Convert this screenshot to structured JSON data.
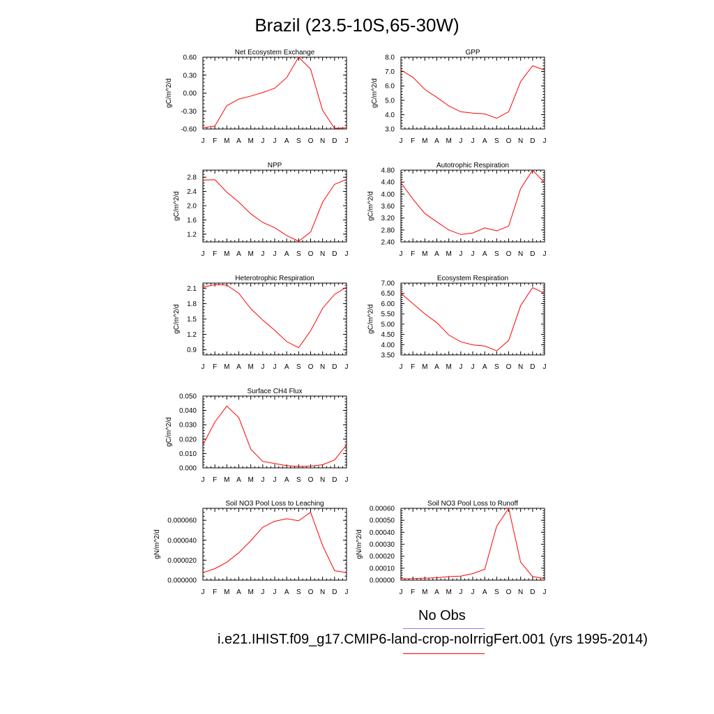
{
  "figure_title": "Brazil (23.5-10S,65-30W)",
  "legend": {
    "obs_label": "No Obs",
    "obs_color": "#8080ff",
    "run_label": "i.e21.IHIST.f09_g17.CMIP6-land-crop-noIrrigFert.001 (yrs 1995-2014)",
    "run_color": "#ff0000"
  },
  "chart_data": [
    {
      "type": "line",
      "title": "Net Ecosystem Exchange",
      "ylabel": "gC/m^2/d",
      "xlabel": "",
      "categories": [
        "J",
        "F",
        "M",
        "A",
        "M",
        "J",
        "J",
        "A",
        "S",
        "O",
        "N",
        "D",
        "J"
      ],
      "ylim": [
        -0.6,
        0.6
      ],
      "yticks": [
        -0.6,
        -0.3,
        0.0,
        0.3,
        0.6
      ],
      "ytick_labels": [
        "-0.60",
        "-0.30",
        "0.00",
        "0.30",
        "0.60"
      ],
      "series": [
        {
          "color": "#ff0000",
          "values": [
            -0.58,
            -0.55,
            -0.21,
            -0.1,
            -0.05,
            0.01,
            0.08,
            0.26,
            0.6,
            0.4,
            -0.29,
            -0.59,
            -0.58
          ]
        }
      ]
    },
    {
      "type": "line",
      "title": "GPP",
      "ylabel": "gC/m^2/d",
      "xlabel": "",
      "categories": [
        "J",
        "F",
        "M",
        "A",
        "M",
        "J",
        "J",
        "A",
        "S",
        "O",
        "N",
        "D",
        "J"
      ],
      "ylim": [
        3.0,
        8.0
      ],
      "yticks": [
        3,
        4,
        5,
        6,
        7,
        8
      ],
      "ytick_labels": [
        "3.0",
        "4.0",
        "5.0",
        "6.0",
        "7.0",
        "8.0"
      ],
      "series": [
        {
          "color": "#ff0000",
          "values": [
            7.1,
            6.6,
            5.75,
            5.2,
            4.6,
            4.2,
            4.1,
            4.05,
            3.75,
            4.2,
            6.3,
            7.4,
            7.1
          ]
        }
      ]
    },
    {
      "type": "line",
      "title": "NPP",
      "ylabel": "gC/m^2/d",
      "xlabel": "",
      "categories": [
        "J",
        "F",
        "M",
        "A",
        "M",
        "J",
        "J",
        "A",
        "S",
        "O",
        "N",
        "D",
        "J"
      ],
      "ylim": [
        0.98,
        3.0
      ],
      "yticks": [
        1.2,
        1.6,
        2.0,
        2.4,
        2.8
      ],
      "ytick_labels": [
        "1.2",
        "1.6",
        "2.0",
        "2.4",
        "2.8"
      ],
      "series": [
        {
          "color": "#ff0000",
          "values": [
            2.72,
            2.73,
            2.38,
            2.1,
            1.77,
            1.53,
            1.38,
            1.16,
            1.0,
            1.26,
            2.1,
            2.6,
            2.74
          ]
        }
      ]
    },
    {
      "type": "line",
      "title": "Autotrophic Respiration",
      "ylabel": "gC/m^2/d",
      "xlabel": "",
      "categories": [
        "J",
        "F",
        "M",
        "A",
        "M",
        "J",
        "J",
        "A",
        "S",
        "O",
        "N",
        "D",
        "J"
      ],
      "ylim": [
        2.4,
        4.8
      ],
      "yticks": [
        2.4,
        2.8,
        3.2,
        3.6,
        4.0,
        4.4,
        4.8
      ],
      "ytick_labels": [
        "2.40",
        "2.80",
        "3.20",
        "3.60",
        "4.00",
        "4.40",
        "4.80"
      ],
      "series": [
        {
          "color": "#ff0000",
          "values": [
            4.38,
            3.83,
            3.35,
            3.07,
            2.8,
            2.65,
            2.7,
            2.87,
            2.77,
            2.93,
            4.18,
            4.8,
            4.38
          ]
        }
      ]
    },
    {
      "type": "line",
      "title": "Heterotrophic Respiration",
      "ylabel": "gC/m^2/d",
      "xlabel": "",
      "categories": [
        "J",
        "F",
        "M",
        "A",
        "M",
        "J",
        "J",
        "A",
        "S",
        "O",
        "N",
        "D",
        "J"
      ],
      "ylim": [
        0.8,
        2.2
      ],
      "yticks": [
        0.9,
        1.2,
        1.5,
        1.8,
        2.1
      ],
      "ytick_labels": [
        "0.9",
        "1.2",
        "1.5",
        "1.8",
        "2.1"
      ],
      "series": [
        {
          "color": "#ff0000",
          "values": [
            2.12,
            2.17,
            2.16,
            2.0,
            1.7,
            1.48,
            1.28,
            1.06,
            0.94,
            1.27,
            1.71,
            1.98,
            2.12
          ]
        }
      ]
    },
    {
      "type": "line",
      "title": "Ecosystem Respiration",
      "ylabel": "gC/m^2/d",
      "xlabel": "",
      "categories": [
        "J",
        "F",
        "M",
        "A",
        "M",
        "J",
        "J",
        "A",
        "S",
        "O",
        "N",
        "D",
        "J"
      ],
      "ylim": [
        3.5,
        7.0
      ],
      "yticks": [
        3.5,
        4.0,
        4.5,
        5.0,
        5.5,
        6.0,
        6.5,
        7.0
      ],
      "ytick_labels": [
        "3.50",
        "4.00",
        "4.50",
        "5.00",
        "5.50",
        "6.00",
        "6.50",
        "7.00"
      ],
      "series": [
        {
          "color": "#ff0000",
          "values": [
            6.5,
            6.0,
            5.5,
            5.07,
            4.47,
            4.14,
            3.99,
            3.93,
            3.7,
            4.2,
            5.9,
            6.78,
            6.5
          ]
        }
      ]
    },
    {
      "type": "line",
      "title": "Surface CH4 Flux",
      "ylabel": "gC/m^2/d",
      "xlabel": "",
      "categories": [
        "J",
        "F",
        "M",
        "A",
        "M",
        "J",
        "J",
        "A",
        "S",
        "O",
        "N",
        "D",
        "J"
      ],
      "ylim": [
        0.0,
        0.05
      ],
      "yticks": [
        0,
        0.01,
        0.02,
        0.03,
        0.04,
        0.05
      ],
      "ytick_labels": [
        "0.000",
        "0.010",
        "0.020",
        "0.030",
        "0.040",
        "0.050"
      ],
      "series": [
        {
          "color": "#ff0000",
          "values": [
            0.016,
            0.032,
            0.043,
            0.035,
            0.013,
            0.0045,
            0.003,
            0.0015,
            0.001,
            0.0012,
            0.0022,
            0.0055,
            0.016
          ]
        }
      ]
    },
    {
      "type": "line",
      "title": "Soil NO3 Pool Loss to Leaching",
      "ylabel": "gN/m^2/d",
      "xlabel": "",
      "categories": [
        "J",
        "F",
        "M",
        "A",
        "M",
        "J",
        "J",
        "A",
        "S",
        "O",
        "N",
        "D",
        "J"
      ],
      "ylim": [
        0.0,
        7.2e-05
      ],
      "yticks": [
        0,
        2e-05,
        4e-05,
        6e-05
      ],
      "ytick_labels": [
        "0.000000",
        "0.000020",
        "0.000040",
        "0.000060"
      ],
      "series": [
        {
          "color": "#ff0000",
          "values": [
            7.5e-06,
            1.15e-05,
            1.8e-05,
            2.75e-05,
            3.95e-05,
            5.3e-05,
            5.9e-05,
            6.15e-05,
            5.95e-05,
            6.8e-05,
            3.45e-05,
            9.5e-06,
            7.5e-06
          ]
        }
      ]
    },
    {
      "type": "line",
      "title": "Soil NO3 Pool Loss to Runoff",
      "ylabel": "gN/m^2/d",
      "xlabel": "",
      "categories": [
        "J",
        "F",
        "M",
        "A",
        "M",
        "J",
        "J",
        "A",
        "S",
        "O",
        "N",
        "D",
        "J"
      ],
      "ylim": [
        0.0,
        0.0006
      ],
      "yticks": [
        0,
        0.0001,
        0.0002,
        0.0003,
        0.0004,
        0.0005,
        0.0006
      ],
      "ytick_labels": [
        "0.00000",
        "0.00010",
        "0.00020",
        "0.00030",
        "0.00040",
        "0.00050",
        "0.00060"
      ],
      "series": [
        {
          "color": "#ff0000",
          "values": [
            1.2e-05,
            1.3e-05,
            1.7e-05,
            2e-05,
            3e-05,
            3.3e-05,
            5.5e-05,
            9e-05,
            0.00045,
            0.0006,
            0.00015,
            3e-05,
            1.3e-05
          ]
        }
      ]
    }
  ]
}
